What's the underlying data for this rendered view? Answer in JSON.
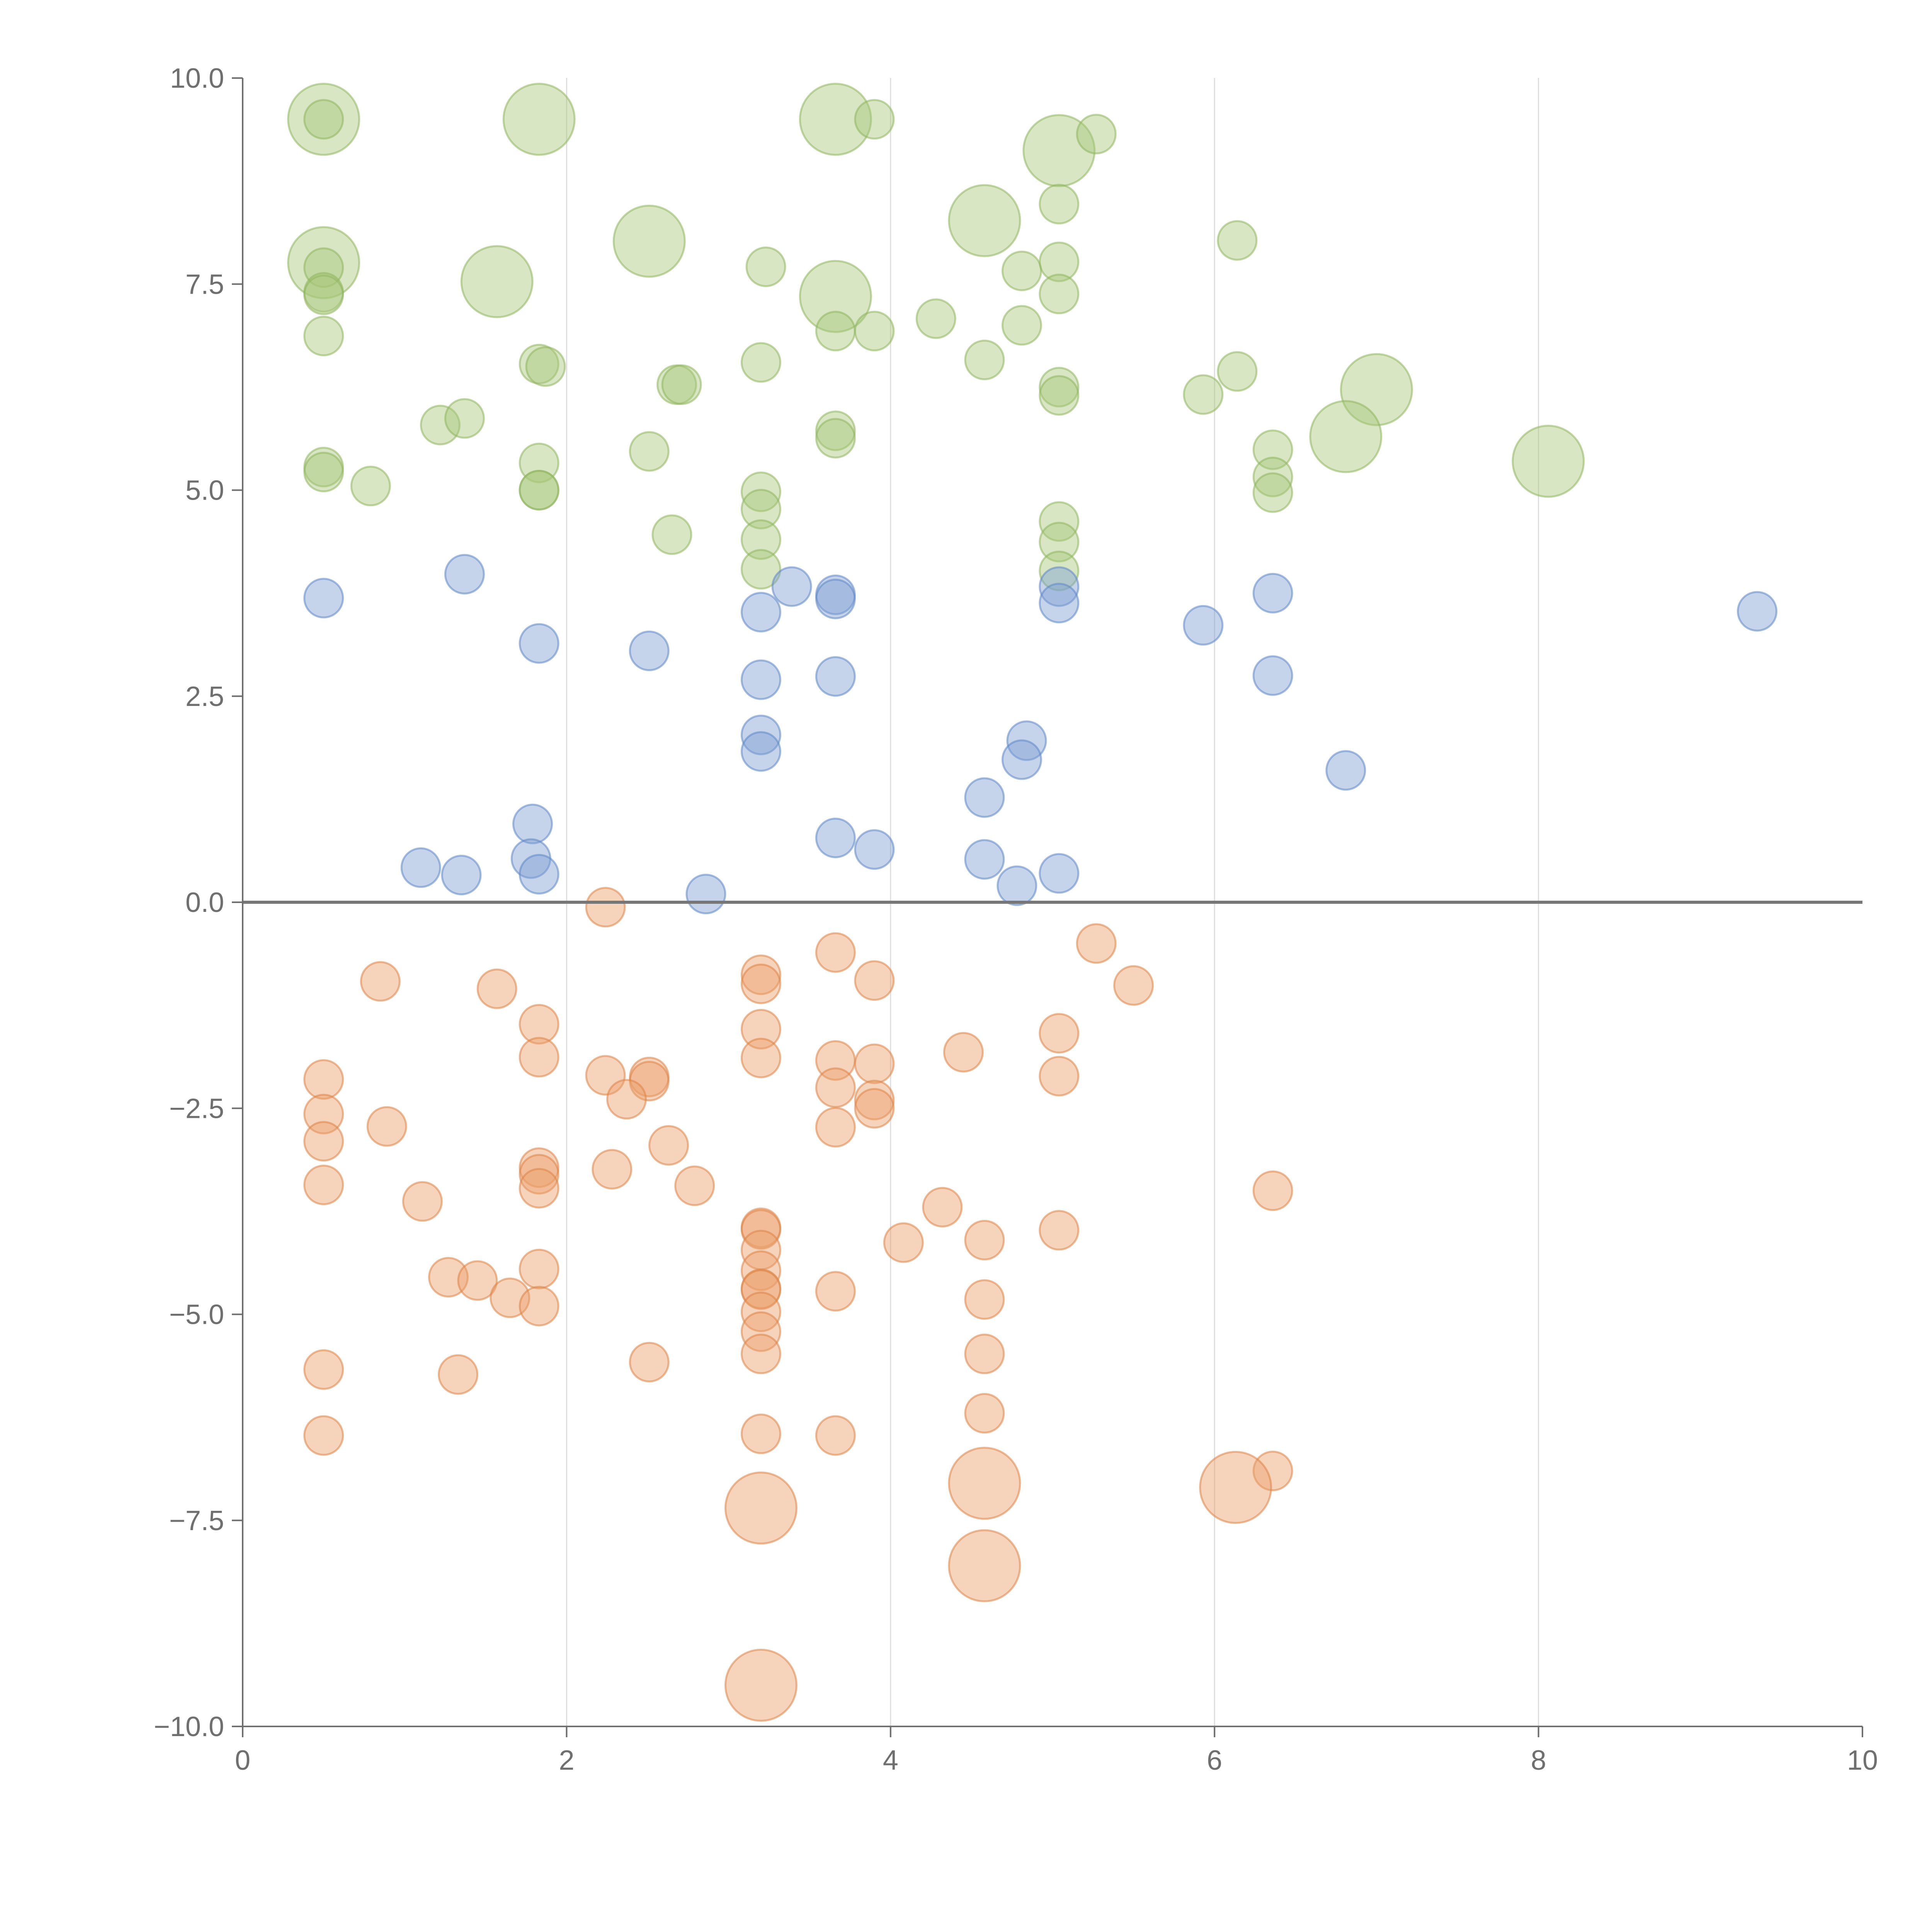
{
  "colors": {
    "green_fill": "#a9c87a",
    "green_stroke": "#8fb45e",
    "blue_fill": "#7e9fd3",
    "blue_stroke": "#5f86c6",
    "orange_fill": "#eaa06a",
    "orange_stroke": "#dd8447",
    "axis": "#6f6f6f",
    "grid": "#dddddd",
    "zero_line": "#777777"
  },
  "chart_data": {
    "type": "scatter",
    "subtype": "bubble",
    "title": "",
    "xlabel": "",
    "ylabel": "",
    "xlim": [
      0,
      10
    ],
    "ylim": [
      -10,
      10
    ],
    "x_ticks": [
      "0",
      "2",
      "4",
      "6",
      "8",
      "10"
    ],
    "x_tick_values": [
      0,
      2,
      4,
      6,
      8,
      10
    ],
    "y_ticks": [
      "10.0",
      "7.5",
      "5.0",
      "2.5",
      "0.0",
      "−2.5",
      "−5.0",
      "−7.5",
      "−10.0"
    ],
    "y_tick_values": [
      10,
      7.5,
      5,
      2.5,
      0,
      -2.5,
      -5,
      -7.5,
      -10
    ],
    "vertical_gridlines_at": [
      2,
      4,
      6,
      8
    ],
    "horizontal_reference_line_at": 0,
    "legend": "none",
    "size_unit": "relative (1 = small bubble, 2 = large bubble)",
    "series": [
      {
        "name": "green",
        "color_key": "green",
        "points": [
          [
            0.5,
            9.5,
            2
          ],
          [
            0.5,
            9.5,
            1
          ],
          [
            1.83,
            9.5,
            2
          ],
          [
            3.66,
            9.5,
            2
          ],
          [
            3.9,
            9.5,
            1
          ],
          [
            5.04,
            9.12,
            2
          ],
          [
            5.27,
            9.32,
            1
          ],
          [
            4.58,
            8.27,
            2
          ],
          [
            5.04,
            8.47,
            1
          ],
          [
            2.51,
            8.02,
            2
          ],
          [
            6.14,
            8.03,
            1
          ],
          [
            0.5,
            7.76,
            2
          ],
          [
            0.5,
            7.7,
            1
          ],
          [
            1.57,
            7.53,
            2
          ],
          [
            3.23,
            7.71,
            1
          ],
          [
            3.66,
            7.35,
            2
          ],
          [
            4.81,
            7.66,
            1
          ],
          [
            5.04,
            7.77,
            1
          ],
          [
            0.5,
            7.4,
            1
          ],
          [
            0.5,
            7.37,
            1
          ],
          [
            5.04,
            7.38,
            1
          ],
          [
            4.28,
            7.08,
            1
          ],
          [
            4.81,
            7.0,
            1
          ],
          [
            3.66,
            6.93,
            1
          ],
          [
            3.9,
            6.93,
            1
          ],
          [
            0.5,
            6.87,
            1
          ],
          [
            4.58,
            6.58,
            1
          ],
          [
            3.2,
            6.55,
            1
          ],
          [
            1.83,
            6.53,
            1
          ],
          [
            1.87,
            6.5,
            1
          ],
          [
            6.14,
            6.44,
            1
          ],
          [
            2.68,
            6.28,
            1
          ],
          [
            2.71,
            6.28,
            1
          ],
          [
            5.04,
            6.25,
            1
          ],
          [
            5.04,
            6.15,
            1
          ],
          [
            7.0,
            6.22,
            2
          ],
          [
            5.93,
            6.16,
            1
          ],
          [
            1.22,
            5.79,
            1
          ],
          [
            1.37,
            5.87,
            1
          ],
          [
            3.66,
            5.72,
            1
          ],
          [
            3.66,
            5.63,
            1
          ],
          [
            6.81,
            5.65,
            2
          ],
          [
            6.36,
            5.49,
            1
          ],
          [
            2.51,
            5.47,
            1
          ],
          [
            1.83,
            5.33,
            1
          ],
          [
            8.06,
            5.35,
            2
          ],
          [
            0.5,
            5.28,
            1
          ],
          [
            0.5,
            5.22,
            1
          ],
          [
            6.36,
            5.16,
            1
          ],
          [
            0.79,
            5.05,
            1
          ],
          [
            1.83,
            5.0,
            1
          ],
          [
            1.83,
            5.0,
            1
          ],
          [
            3.2,
            4.98,
            1
          ],
          [
            6.36,
            4.97,
            1
          ],
          [
            3.2,
            4.77,
            1
          ],
          [
            5.04,
            4.62,
            1
          ],
          [
            2.65,
            4.46,
            1
          ],
          [
            3.2,
            4.4,
            1
          ],
          [
            5.04,
            4.37,
            1
          ],
          [
            3.2,
            4.04,
            1
          ],
          [
            5.04,
            4.02,
            1
          ]
        ]
      },
      {
        "name": "blue",
        "color_key": "blue",
        "points": [
          [
            0.5,
            3.69,
            1
          ],
          [
            1.37,
            3.98,
            1
          ],
          [
            3.39,
            3.83,
            1
          ],
          [
            3.66,
            3.73,
            1
          ],
          [
            3.66,
            3.68,
            1
          ],
          [
            5.04,
            3.83,
            1
          ],
          [
            5.04,
            3.63,
            1
          ],
          [
            6.36,
            3.75,
            1
          ],
          [
            3.2,
            3.52,
            1
          ],
          [
            9.35,
            3.53,
            1
          ],
          [
            5.93,
            3.36,
            1
          ],
          [
            1.83,
            3.14,
            1
          ],
          [
            2.51,
            3.05,
            1
          ],
          [
            3.2,
            2.7,
            1
          ],
          [
            3.66,
            2.74,
            1
          ],
          [
            6.36,
            2.75,
            1
          ],
          [
            3.2,
            2.03,
            1
          ],
          [
            3.2,
            1.83,
            1
          ],
          [
            4.84,
            1.96,
            1
          ],
          [
            4.81,
            1.73,
            1
          ],
          [
            6.81,
            1.6,
            1
          ],
          [
            4.58,
            1.27,
            1
          ],
          [
            1.79,
            0.95,
            1
          ],
          [
            3.66,
            0.78,
            1
          ],
          [
            3.9,
            0.64,
            1
          ],
          [
            1.78,
            0.53,
            1
          ],
          [
            4.58,
            0.52,
            1
          ],
          [
            1.1,
            0.42,
            1
          ],
          [
            1.35,
            0.33,
            1
          ],
          [
            1.83,
            0.34,
            1
          ],
          [
            5.04,
            0.35,
            1
          ],
          [
            4.78,
            0.2,
            1
          ],
          [
            2.86,
            0.1,
            1
          ]
        ]
      },
      {
        "name": "orange",
        "color_key": "orange",
        "points": [
          [
            2.24,
            -0.06,
            1
          ],
          [
            5.27,
            -0.5,
            1
          ],
          [
            3.66,
            -0.61,
            1
          ],
          [
            3.2,
            -0.88,
            1
          ],
          [
            3.2,
            -0.99,
            1
          ],
          [
            0.85,
            -0.96,
            1
          ],
          [
            3.9,
            -0.95,
            1
          ],
          [
            1.57,
            -1.05,
            1
          ],
          [
            5.5,
            -1.01,
            1
          ],
          [
            1.83,
            -1.48,
            1
          ],
          [
            3.2,
            -1.54,
            1
          ],
          [
            5.04,
            -1.59,
            1
          ],
          [
            4.45,
            -1.82,
            1
          ],
          [
            1.83,
            -1.88,
            1
          ],
          [
            3.2,
            -1.89,
            1
          ],
          [
            3.66,
            -1.92,
            1
          ],
          [
            3.9,
            -1.96,
            1
          ],
          [
            2.24,
            -2.1,
            1
          ],
          [
            2.51,
            -2.12,
            1
          ],
          [
            2.51,
            -2.17,
            1
          ],
          [
            0.5,
            -2.15,
            1
          ],
          [
            5.04,
            -2.11,
            1
          ],
          [
            3.66,
            -2.25,
            1
          ],
          [
            2.37,
            -2.39,
            1
          ],
          [
            3.9,
            -2.4,
            1
          ],
          [
            3.9,
            -2.5,
            1
          ],
          [
            0.5,
            -2.57,
            1
          ],
          [
            0.89,
            -2.72,
            1
          ],
          [
            3.66,
            -2.73,
            1
          ],
          [
            0.5,
            -2.9,
            1
          ],
          [
            2.63,
            -2.95,
            1
          ],
          [
            1.83,
            -3.22,
            1
          ],
          [
            1.83,
            -3.3,
            1
          ],
          [
            2.28,
            -3.24,
            1
          ],
          [
            1.83,
            -3.47,
            1
          ],
          [
            0.5,
            -3.43,
            1
          ],
          [
            2.79,
            -3.44,
            1
          ],
          [
            6.36,
            -3.5,
            1
          ],
          [
            1.11,
            -3.63,
            1
          ],
          [
            4.32,
            -3.7,
            1
          ],
          [
            3.2,
            -3.95,
            1
          ],
          [
            3.2,
            -3.97,
            1
          ],
          [
            5.04,
            -3.98,
            1
          ],
          [
            4.58,
            -4.1,
            1
          ],
          [
            4.08,
            -4.13,
            1
          ],
          [
            3.2,
            -4.22,
            1
          ],
          [
            3.2,
            -4.47,
            1
          ],
          [
            1.83,
            -4.45,
            1
          ],
          [
            1.27,
            -4.55,
            1
          ],
          [
            1.45,
            -4.59,
            1
          ],
          [
            3.2,
            -4.69,
            1
          ],
          [
            3.2,
            -4.7,
            1
          ],
          [
            3.66,
            -4.72,
            1
          ],
          [
            1.65,
            -4.8,
            1
          ],
          [
            4.58,
            -4.82,
            1
          ],
          [
            1.83,
            -4.9,
            1
          ],
          [
            3.2,
            -4.97,
            1
          ],
          [
            3.2,
            -5.21,
            1
          ],
          [
            3.2,
            -5.48,
            1
          ],
          [
            4.58,
            -5.48,
            1
          ],
          [
            2.51,
            -5.58,
            1
          ],
          [
            0.5,
            -5.67,
            1
          ],
          [
            1.33,
            -5.73,
            1
          ],
          [
            4.58,
            -6.2,
            1
          ],
          [
            3.2,
            -6.45,
            1
          ],
          [
            0.5,
            -6.47,
            1
          ],
          [
            3.66,
            -6.47,
            1
          ],
          [
            6.36,
            -6.9,
            1
          ],
          [
            4.58,
            -7.05,
            2
          ],
          [
            6.13,
            -7.1,
            2
          ],
          [
            3.2,
            -7.35,
            2
          ],
          [
            4.58,
            -8.05,
            2
          ],
          [
            3.2,
            -9.5,
            2
          ]
        ]
      }
    ]
  }
}
